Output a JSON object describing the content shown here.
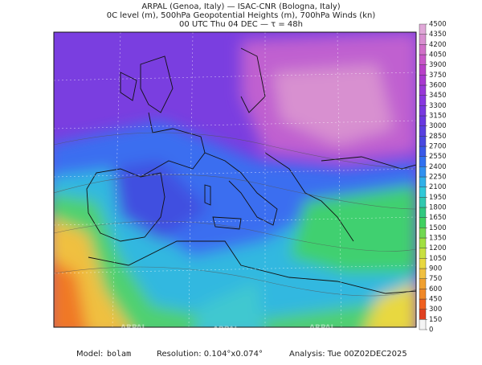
{
  "header": {
    "lines": [
      "ARPAL (Genoa, Italy)  —  ISAC-CNR (Bologna, Italy)",
      "0C level (m), 500hPa Geopotential Heights (m), 700hPa Winds (kn)",
      "00 UTC Thu 04 DEC  —  τ = 48h"
    ]
  },
  "colorbar": {
    "levels": [
      0,
      150,
      300,
      450,
      600,
      750,
      900,
      1050,
      1200,
      1350,
      1500,
      1650,
      1800,
      1950,
      2100,
      2250,
      2400,
      2550,
      2700,
      2850,
      3000,
      3150,
      3300,
      3450,
      3600,
      3750,
      3900,
      4050,
      4200,
      4350,
      4500
    ],
    "colors": [
      "#f4f4f4",
      "#e04020",
      "#f06020",
      "#f08828",
      "#f0a030",
      "#f0c040",
      "#e8d840",
      "#c8e040",
      "#a0e040",
      "#70d850",
      "#40d060",
      "#30c880",
      "#30c8b0",
      "#30c8d8",
      "#30b0e8",
      "#3090f0",
      "#3070f0",
      "#3858e8",
      "#4848e0",
      "#5840e0",
      "#6838e0",
      "#7838e0",
      "#8838e0",
      "#9838d8",
      "#a838d0",
      "#b840c8",
      "#c858c8",
      "#d070c8",
      "#d890d0",
      "#e0a8d8"
    ]
  },
  "watermark": "ARPAL",
  "footer": {
    "model_label": "Model:",
    "model": "bolam",
    "resolution": "Resolution: 0.104°x0.074°",
    "analysis": "Analysis: Tue 00Z02DEC2025"
  }
}
